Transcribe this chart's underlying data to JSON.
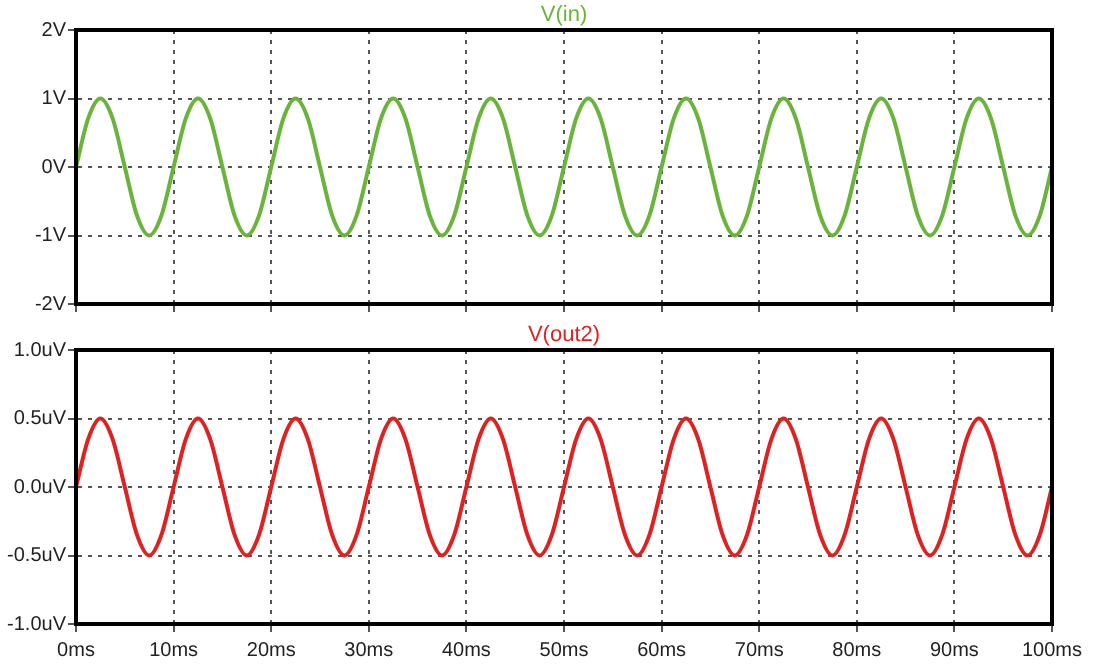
{
  "chart_data": [
    {
      "type": "line",
      "x": [
        0,
        1.25,
        2.5,
        3.75,
        5,
        6.25,
        7.5,
        8.75,
        10,
        11.25,
        12.5,
        13.75,
        15,
        16.25,
        17.5,
        18.75,
        20,
        21.25,
        22.5,
        23.75,
        25,
        26.25,
        27.5,
        28.75,
        30,
        31.25,
        32.5,
        33.75,
        35,
        36.25,
        37.5,
        38.75,
        40,
        41.25,
        42.5,
        43.75,
        45,
        46.25,
        47.5,
        48.75,
        50,
        51.25,
        52.5,
        53.75,
        55,
        56.25,
        57.5,
        58.75,
        60,
        61.25,
        62.5,
        63.75,
        65,
        66.25,
        67.5,
        68.75,
        70,
        71.25,
        72.5,
        73.75,
        75,
        76.25,
        77.5,
        78.75,
        80,
        81.25,
        82.5,
        83.75,
        85,
        86.25,
        87.5,
        88.75,
        90,
        91.25,
        92.5,
        93.75,
        95,
        96.25,
        97.5,
        98.75,
        100
      ],
      "series": [
        {
          "name": "V(in)",
          "color": "#6ab43c",
          "values": [
            0,
            0.71,
            1,
            0.71,
            0,
            -0.71,
            -1,
            -0.71,
            0,
            0.71,
            1,
            0.71,
            0,
            -0.71,
            -1,
            -0.71,
            0,
            0.71,
            1,
            0.71,
            0,
            -0.71,
            -1,
            -0.71,
            0,
            0.71,
            1,
            0.71,
            0,
            -0.71,
            -1,
            -0.71,
            0,
            0.71,
            1,
            0.71,
            0,
            -0.71,
            -1,
            -0.71,
            0,
            0.71,
            1,
            0.71,
            0,
            -0.71,
            -1,
            -0.71,
            0,
            0.71,
            1,
            0.71,
            0,
            -0.71,
            -1,
            -0.71,
            0,
            0.71,
            1,
            0.71,
            0,
            -0.71,
            -1,
            -0.71,
            0,
            0.71,
            1,
            0.71,
            0,
            -0.71,
            -1,
            -0.71,
            0,
            0.71,
            1,
            0.71,
            0,
            -0.71,
            -1,
            -0.71,
            0
          ]
        }
      ],
      "xlim": [
        0,
        100
      ],
      "xticks": [
        0,
        10,
        20,
        30,
        40,
        50,
        60,
        70,
        80,
        90,
        100
      ],
      "ylim": [
        -2,
        2
      ],
      "yticks": [
        {
          "value": -2,
          "label": "-2V"
        },
        {
          "value": -1,
          "label": "-1V"
        },
        {
          "value": 0,
          "label": "0V"
        },
        {
          "value": 1,
          "label": "1V"
        },
        {
          "value": 2,
          "label": "2V"
        }
      ],
      "tick_labels": "y",
      "grid": true,
      "legend": "top",
      "marker": "none",
      "line_style": "solid"
    },
    {
      "type": "line",
      "x": [
        0,
        1.25,
        2.5,
        3.75,
        5,
        6.25,
        7.5,
        8.75,
        10,
        11.25,
        12.5,
        13.75,
        15,
        16.25,
        17.5,
        18.75,
        20,
        21.25,
        22.5,
        23.75,
        25,
        26.25,
        27.5,
        28.75,
        30,
        31.25,
        32.5,
        33.75,
        35,
        36.25,
        37.5,
        38.75,
        40,
        41.25,
        42.5,
        43.75,
        45,
        46.25,
        47.5,
        48.75,
        50,
        51.25,
        52.5,
        53.75,
        55,
        56.25,
        57.5,
        58.75,
        60,
        61.25,
        62.5,
        63.75,
        65,
        66.25,
        67.5,
        68.75,
        70,
        71.25,
        72.5,
        73.75,
        75,
        76.25,
        77.5,
        78.75,
        80,
        81.25,
        82.5,
        83.75,
        85,
        86.25,
        87.5,
        88.75,
        90,
        91.25,
        92.5,
        93.75,
        95,
        96.25,
        97.5,
        98.75,
        100
      ],
      "series": [
        {
          "name": "V(out2)",
          "color": "#dd2222",
          "values": [
            0,
            0.35,
            0.5,
            0.35,
            0,
            -0.35,
            -0.5,
            -0.35,
            0,
            0.35,
            0.5,
            0.35,
            0,
            -0.35,
            -0.5,
            -0.35,
            0,
            0.35,
            0.5,
            0.35,
            0,
            -0.35,
            -0.5,
            -0.35,
            0,
            0.35,
            0.5,
            0.35,
            0,
            -0.35,
            -0.5,
            -0.35,
            0,
            0.35,
            0.5,
            0.35,
            0,
            -0.35,
            -0.5,
            -0.35,
            0,
            0.35,
            0.5,
            0.35,
            0,
            -0.35,
            -0.5,
            -0.35,
            0,
            0.35,
            0.5,
            0.35,
            0,
            -0.35,
            -0.5,
            -0.35,
            0,
            0.35,
            0.5,
            0.35,
            0,
            -0.35,
            -0.5,
            -0.35,
            0,
            0.35,
            0.5,
            0.35,
            0,
            -0.35,
            -0.5,
            -0.35,
            0,
            0.35,
            0.5,
            0.35,
            0,
            -0.35,
            -0.5,
            -0.35,
            0
          ]
        }
      ],
      "xlim": [
        0,
        100
      ],
      "xticks": [
        {
          "value": 0,
          "label": "0ms"
        },
        {
          "value": 10,
          "label": "10ms"
        },
        {
          "value": 20,
          "label": "20ms"
        },
        {
          "value": 30,
          "label": "30ms"
        },
        {
          "value": 40,
          "label": "40ms"
        },
        {
          "value": 50,
          "label": "50ms"
        },
        {
          "value": 60,
          "label": "60ms"
        },
        {
          "value": 70,
          "label": "70ms"
        },
        {
          "value": 80,
          "label": "80ms"
        },
        {
          "value": 90,
          "label": "90ms"
        },
        {
          "value": 100,
          "label": "100ms"
        }
      ],
      "ylim": [
        -1,
        1
      ],
      "yticks": [
        {
          "value": -1,
          "label": "-1.0uV"
        },
        {
          "value": -0.5,
          "label": "-0.5uV"
        },
        {
          "value": 0,
          "label": "0.0uV"
        },
        {
          "value": 0.5,
          "label": "0.5uV"
        },
        {
          "value": 1,
          "label": "1.0uV"
        }
      ],
      "grid": true,
      "legend": "top",
      "marker": "none",
      "line_style": "solid"
    }
  ]
}
